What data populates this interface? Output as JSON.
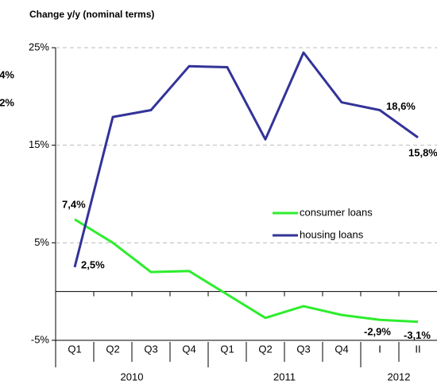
{
  "chart_data": {
    "type": "line",
    "title": "Change y/y (nominal terms)",
    "categories": [
      "Q1",
      "Q2",
      "Q3",
      "Q4",
      "Q1",
      "Q2",
      "Q3",
      "Q4",
      "I",
      "II"
    ],
    "groups": [
      {
        "label": "2010",
        "count": 4
      },
      {
        "label": "2011",
        "count": 4
      },
      {
        "label": "2012",
        "count": 2
      }
    ],
    "series": [
      {
        "name": "consumer loans",
        "color": "#2ded2d",
        "values": [
          7.4,
          5.0,
          2.0,
          2.1,
          -0.3,
          -2.7,
          -1.5,
          -2.4,
          -2.9,
          -3.1
        ],
        "value_labels": [
          "7,4%",
          null,
          null,
          null,
          null,
          null,
          null,
          null,
          "-2,9%",
          "-3,1%"
        ]
      },
      {
        "name": "housing loans",
        "color": "#333399",
        "values": [
          2.5,
          17.9,
          18.6,
          23.1,
          23.0,
          15.6,
          24.5,
          19.4,
          18.6,
          15.8
        ],
        "value_labels": [
          "2,5%",
          null,
          null,
          null,
          null,
          null,
          null,
          null,
          "18,6%",
          "15,8%"
        ]
      }
    ],
    "annotations": [
      "4%",
      "2%"
    ],
    "ylim": [
      -5,
      25
    ],
    "yticks": [
      {
        "value": -5,
        "label": "-5%"
      },
      {
        "value": 5,
        "label": "5%"
      },
      {
        "value": 15,
        "label": "15%"
      },
      {
        "value": 25,
        "label": "25%"
      }
    ],
    "grid": true,
    "legend": "center-right"
  }
}
